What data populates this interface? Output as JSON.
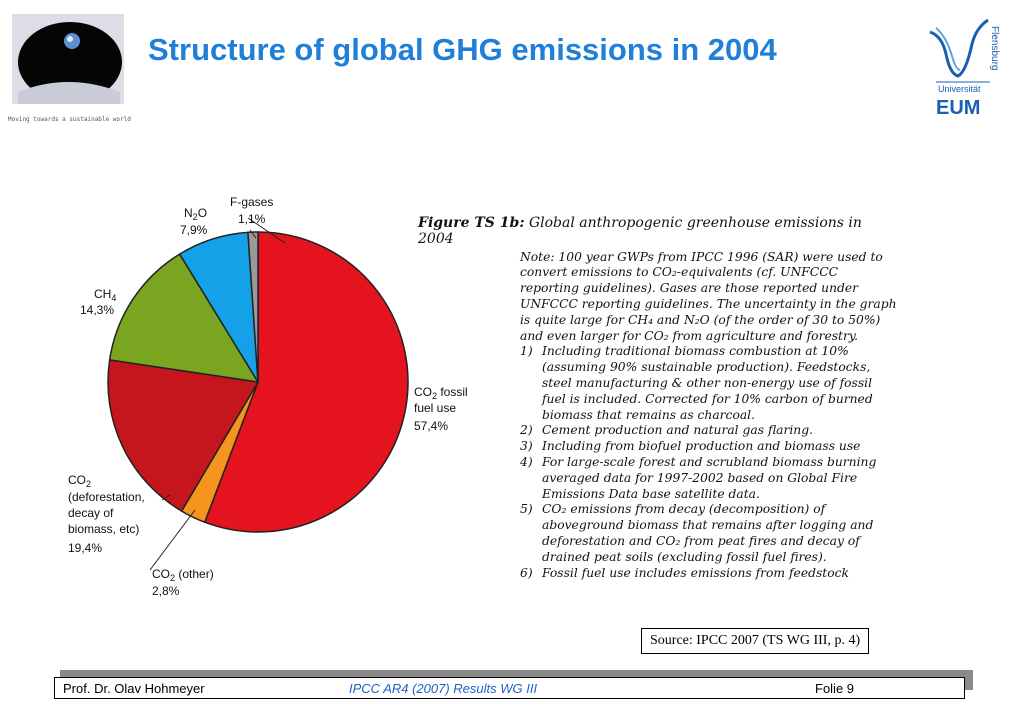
{
  "header": {
    "title": "Structure of global GHG emissions in 2004",
    "tagline": "Moving towards a sustainable world",
    "logo_right": {
      "vertical_text": "Flensburg",
      "line1": "Universität",
      "line2": "EUM"
    }
  },
  "chart_data": {
    "type": "pie",
    "slices": [
      {
        "label": "CO2 fossil fuel use",
        "value": 57.4,
        "value_text": "57,4%",
        "color": "#e4131d"
      },
      {
        "label": "CO2 (other)",
        "value": 2.8,
        "value_text": "2,8%",
        "color": "#f7941d"
      },
      {
        "label": "CO2 (deforestation, decay of biomass, etc)",
        "value": 19.4,
        "value_text": "19,4%",
        "color": "#c4161c"
      },
      {
        "label": "CH4",
        "value": 14.3,
        "value_text": "14,3%",
        "color": "#7aa521"
      },
      {
        "label": "N2O",
        "value": 7.9,
        "value_text": "7,9%",
        "color": "#14a1e8"
      },
      {
        "label": "F-gases",
        "value": 1.1,
        "value_text": "1,1%",
        "color": "#9a9a9a"
      }
    ]
  },
  "figure": {
    "label": "Figure TS 1b:",
    "caption": "Global anthropogenic greenhouse emissions in 2004",
    "note": "Note: 100 year GWPs from IPCC 1996 (SAR) were used to convert emissions to CO₂-equivalents (cf. UNFCCC reporting guidelines). Gases are those reported under UNFCCC reporting guidelines. The uncertainty in the graph is quite large for CH₄ and N₂O (of the order of 30 to 50%) and even larger for CO₂ from agriculture and forestry.",
    "items": [
      {
        "num": "1)",
        "text": "Including traditional biomass combustion at 10% (assuming 90% sustainable production). Feedstocks, steel manufacturing & other non-energy use of fossil fuel is included. Corrected for 10% carbon of burned biomass that remains as charcoal."
      },
      {
        "num": "2)",
        "text": "Cement production and natural gas flaring."
      },
      {
        "num": "3)",
        "text": "Including from biofuel production and biomass use"
      },
      {
        "num": "4)",
        "text": "For large-scale forest and scrubland biomass burning averaged data for 1997-2002 based on Global Fire Emissions Data base satellite data."
      },
      {
        "num": "5)",
        "text": "CO₂ emissions from decay (decomposition) of aboveground biomass that remains after logging and deforestation and CO₂ from peat fires and decay of drained peat soils (excluding fossil fuel fires)."
      },
      {
        "num": "6)",
        "text": "Fossil fuel use includes emissions from feedstock"
      }
    ]
  },
  "source": "Source: IPCC 2007 (TS WG III, p. 4)",
  "footer": {
    "author": "Prof. Dr. Olav Hohmeyer",
    "center": "IPCC AR4 (2007) Results WG III",
    "page": "Folie 9"
  }
}
